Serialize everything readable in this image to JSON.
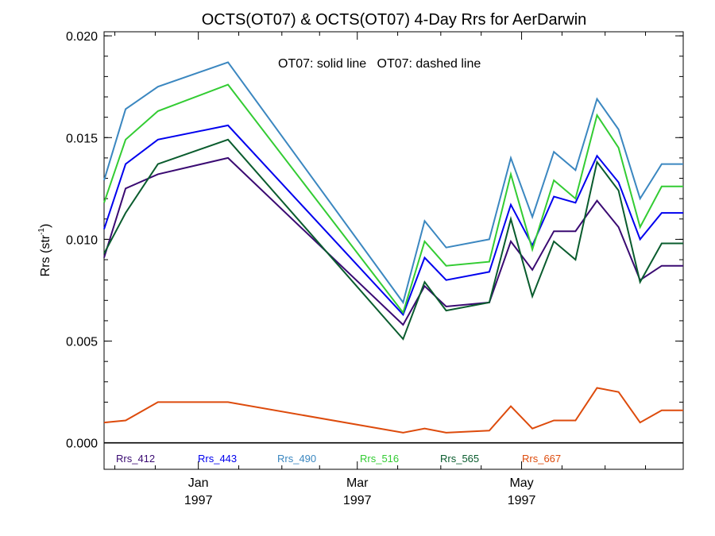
{
  "chart_data": {
    "type": "line",
    "title": "OCTS(OT07) & OCTS(OT07) 4-Day Rrs for AerDarwin",
    "ylabel": "Rrs (str",
    "ylabel_sup": "-1",
    "ylabel_close": ")",
    "annotation": "OT07: solid line   OT07: dashed line",
    "ylim": [
      -0.0013,
      0.0202
    ],
    "y_ticks": [
      0.0,
      0.005,
      0.01,
      0.015,
      0.02
    ],
    "y_tick_labels": [
      "0.000",
      "0.005",
      "0.010",
      "0.015",
      "0.020"
    ],
    "x_range": [
      "1996-11-27",
      "1997-06-30"
    ],
    "x_ticks": [
      {
        "date": "1997-01-01",
        "month": "Jan",
        "year": "1997"
      },
      {
        "date": "1997-03-01",
        "month": "Mar",
        "year": "1997"
      },
      {
        "date": "1997-05-01",
        "month": "May",
        "year": "1997"
      }
    ],
    "zero_line": true,
    "grid": false,
    "legend_position": "bottom inside",
    "x": [
      "1996-11-27",
      "1996-12-05",
      "1996-12-17",
      "1997-01-12",
      "1997-03-18",
      "1997-03-26",
      "1997-04-03",
      "1997-04-19",
      "1997-04-27",
      "1997-05-05",
      "1997-05-13",
      "1997-05-21",
      "1997-05-29",
      "1997-06-06",
      "1997-06-14",
      "1997-06-22",
      "1997-06-30"
    ],
    "series": [
      {
        "name": "Rrs_412",
        "color": "#3a0a72",
        "values": [
          0.0091,
          0.0125,
          0.0132,
          0.014,
          0.0058,
          0.0077,
          0.0067,
          0.0069,
          0.0099,
          0.0085,
          0.0104,
          0.0104,
          0.0119,
          0.0106,
          0.008,
          0.0087,
          0.0087
        ]
      },
      {
        "name": "Rrs_443",
        "color": "#0000ee",
        "values": [
          0.0105,
          0.0137,
          0.0149,
          0.0156,
          0.0063,
          0.0091,
          0.008,
          0.0084,
          0.0117,
          0.0097,
          0.0121,
          0.0118,
          0.0141,
          0.0128,
          0.01,
          0.0113,
          0.0113
        ]
      },
      {
        "name": "Rrs_490",
        "color": "#3b87c0",
        "values": [
          0.0129,
          0.0164,
          0.0175,
          0.0187,
          0.0069,
          0.0109,
          0.0096,
          0.01,
          0.014,
          0.0111,
          0.0143,
          0.0134,
          0.0169,
          0.0154,
          0.012,
          0.0137,
          0.0137
        ]
      },
      {
        "name": "Rrs_516",
        "color": "#33cc33",
        "values": [
          0.0118,
          0.0149,
          0.0163,
          0.0176,
          0.0064,
          0.0099,
          0.0087,
          0.0089,
          0.0132,
          0.0095,
          0.0129,
          0.012,
          0.0161,
          0.0145,
          0.0106,
          0.0126,
          0.0126
        ]
      },
      {
        "name": "Rrs_565",
        "color": "#0a5c2e",
        "values": [
          0.0093,
          0.0113,
          0.0137,
          0.0149,
          0.0051,
          0.0079,
          0.0065,
          0.0069,
          0.011,
          0.0072,
          0.0099,
          0.009,
          0.0138,
          0.0124,
          0.0079,
          0.0098,
          0.0098
        ]
      },
      {
        "name": "Rrs_667",
        "color": "#dd4b0c",
        "values": [
          0.001,
          0.0011,
          0.002,
          0.002,
          0.0005,
          0.0007,
          0.0005,
          0.0006,
          0.0018,
          0.0007,
          0.0011,
          0.0011,
          0.0027,
          0.0025,
          0.001,
          0.0016,
          0.0016
        ]
      }
    ]
  }
}
